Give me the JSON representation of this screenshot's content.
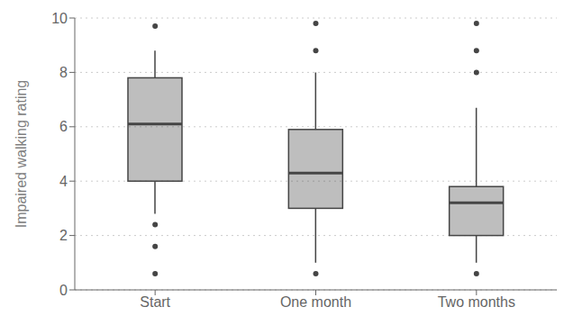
{
  "chart_data": {
    "type": "box",
    "categories": [
      "Start",
      "One month",
      "Two months"
    ],
    "ylabel": "Impaired walking rating",
    "ylim": [
      0,
      10
    ],
    "yticks": [
      0,
      2,
      4,
      6,
      8,
      10
    ],
    "grid": true,
    "color": "#454545",
    "q1": [
      4.0,
      3.0,
      2.0
    ],
    "median": [
      6.1,
      4.3,
      3.2
    ],
    "q3": [
      7.8,
      5.9,
      3.8
    ],
    "whisker_low": [
      2.8,
      1.0,
      1.0
    ],
    "whisker_high": [
      8.8,
      8.0,
      6.7
    ],
    "fliers": [
      [
        9.7,
        2.4,
        1.6,
        0.6
      ],
      [
        9.8,
        8.8,
        0.6
      ],
      [
        9.8,
        8.8,
        8.0,
        0.6
      ]
    ]
  }
}
